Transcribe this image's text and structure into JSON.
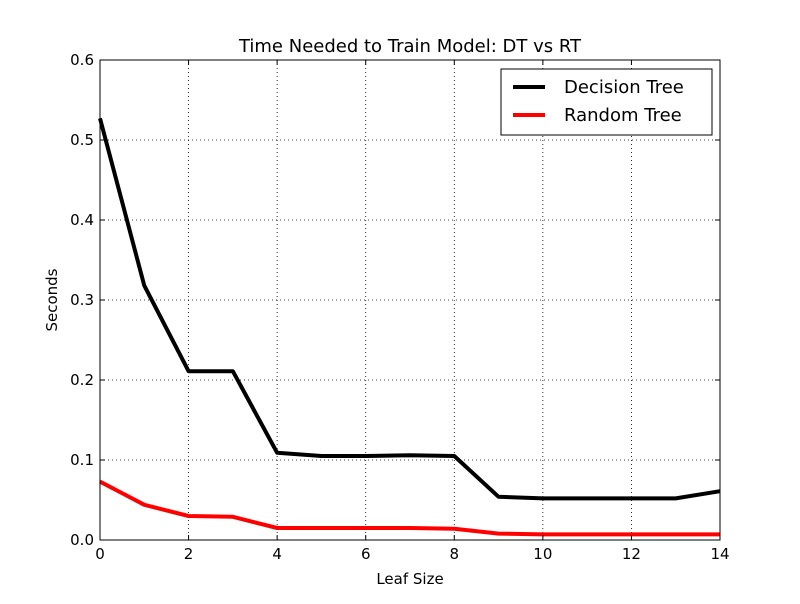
{
  "chart_data": {
    "type": "line",
    "title": "Time Needed to Train Model: DT vs RT",
    "xlabel": "Leaf Size",
    "ylabel": "Seconds",
    "xlim": [
      0,
      14
    ],
    "ylim": [
      0.0,
      0.6
    ],
    "xticks": [
      0,
      2,
      4,
      6,
      8,
      10,
      12,
      14
    ],
    "xtick_labels": [
      "0",
      "2",
      "4",
      "6",
      "8",
      "10",
      "12",
      "14"
    ],
    "yticks": [
      0.0,
      0.1,
      0.2,
      0.3,
      0.4,
      0.5,
      0.6
    ],
    "ytick_labels": [
      "0.0",
      "0.1",
      "0.2",
      "0.3",
      "0.4",
      "0.5",
      "0.6"
    ],
    "grid": true,
    "legend_position": "top-right",
    "x": [
      0,
      1,
      2,
      3,
      4,
      5,
      6,
      7,
      8,
      9,
      10,
      11,
      12,
      13,
      14
    ],
    "series": [
      {
        "name": "Decision Tree",
        "color": "#000000",
        "values": [
          0.527,
          0.318,
          0.211,
          0.211,
          0.109,
          0.105,
          0.105,
          0.106,
          0.105,
          0.054,
          0.052,
          0.052,
          0.052,
          0.052,
          0.061
        ]
      },
      {
        "name": "Random Tree",
        "color": "#ff0000",
        "values": [
          0.073,
          0.044,
          0.03,
          0.029,
          0.015,
          0.015,
          0.015,
          0.015,
          0.014,
          0.008,
          0.007,
          0.007,
          0.007,
          0.007,
          0.007
        ]
      }
    ]
  }
}
